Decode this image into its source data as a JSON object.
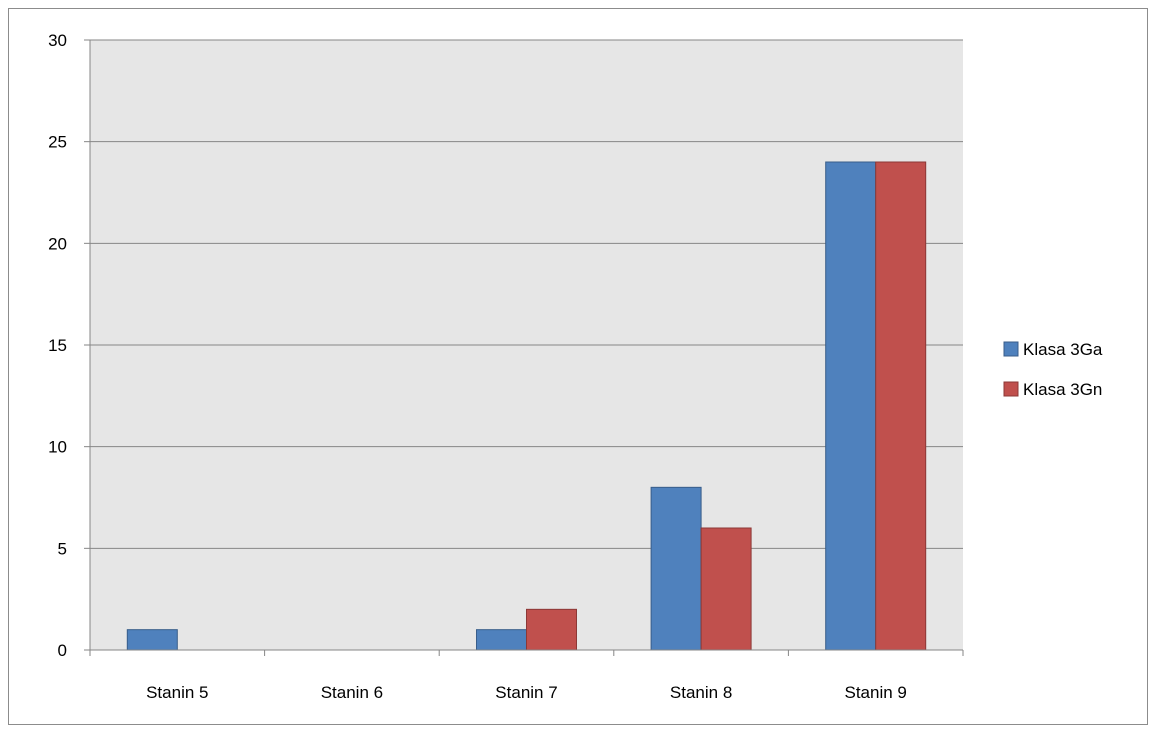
{
  "chart_data": {
    "type": "bar",
    "categories": [
      "Stanin 5",
      "Stanin 6",
      "Stanin 7",
      "Stanin 8",
      "Stanin 9"
    ],
    "series": [
      {
        "name": "Klasa 3Ga",
        "values": [
          1,
          0,
          1,
          8,
          24
        ],
        "color": "#4f81bd",
        "border": "#385d8a"
      },
      {
        "name": "Klasa 3Gn",
        "values": [
          0,
          0,
          2,
          6,
          24
        ],
        "color": "#c0504d",
        "border": "#8c3836"
      }
    ],
    "ylim": [
      0,
      30
    ],
    "yticks": [
      "0",
      "5",
      "10",
      "15",
      "20",
      "25",
      "30"
    ],
    "grid": true,
    "legend_position": "right",
    "plot_background": "#e6e6e6"
  }
}
